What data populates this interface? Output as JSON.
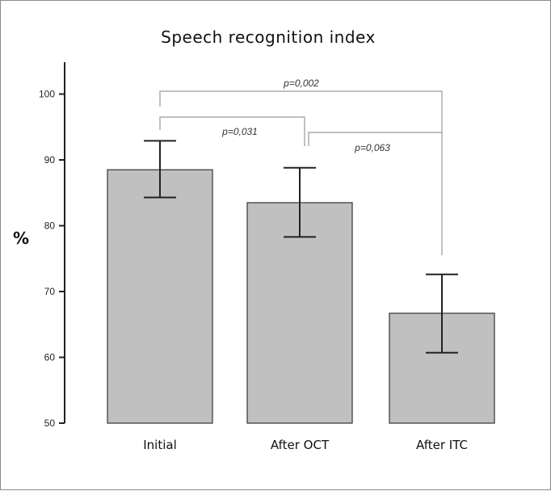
{
  "chart_data": {
    "type": "bar",
    "title": "Speech recognition index",
    "ylabel": "%",
    "xlabel": "",
    "ylim": [
      50,
      105
    ],
    "yticks": [
      50,
      60,
      70,
      80,
      90,
      100
    ],
    "categories": [
      "Initial",
      "After OCT",
      "After ITC"
    ],
    "values": [
      88.5,
      83.5,
      66.7
    ],
    "error_low": [
      84.3,
      78.3,
      60.7
    ],
    "error_high": [
      92.9,
      88.8,
      72.6
    ],
    "bar_color": "#c0c0c0",
    "grid": false,
    "annotations": [
      {
        "text": "p=0,002",
        "from": 0,
        "to": 2
      },
      {
        "text": "p=0,031",
        "from": 0,
        "to": 1
      },
      {
        "text": "p=0,063",
        "from": 1,
        "to": 2
      }
    ]
  }
}
